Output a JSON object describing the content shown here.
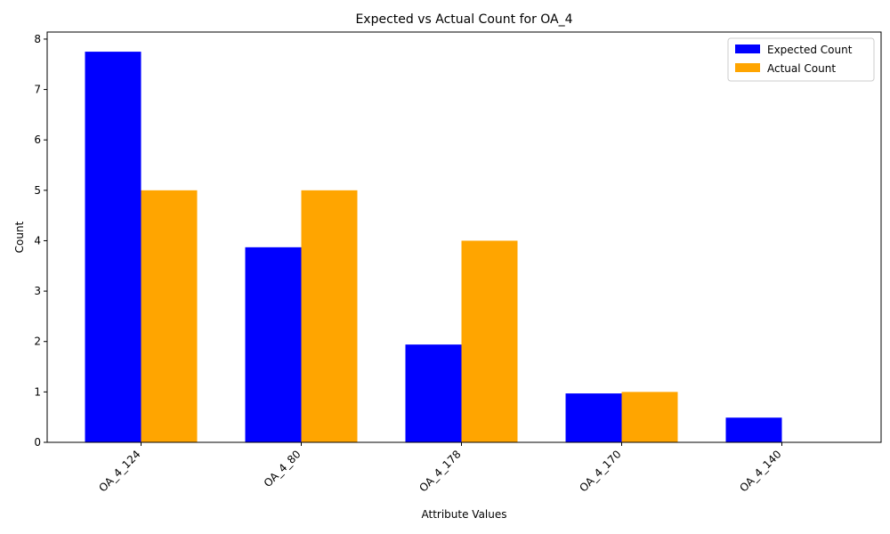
{
  "chart_data": {
    "type": "bar",
    "title": "Expected vs Actual Count for OA_4",
    "xlabel": "Attribute Values",
    "ylabel": "Count",
    "categories": [
      "OA_4_124",
      "OA_4_80",
      "OA_4_178",
      "OA_4_170",
      "OA_4_140"
    ],
    "series": [
      {
        "name": "Expected Count",
        "color": "#0000ff",
        "values": [
          7.75,
          3.87,
          1.94,
          0.97,
          0.49
        ]
      },
      {
        "name": "Actual Count",
        "color": "#ffa500",
        "values": [
          5,
          5,
          4,
          1,
          0
        ]
      }
    ],
    "ylim": [
      0,
      8.14
    ],
    "yticks": [
      "0",
      "1",
      "2",
      "3",
      "4",
      "5",
      "6",
      "7",
      "8"
    ],
    "legend_position": "top-right",
    "grid": false
  }
}
